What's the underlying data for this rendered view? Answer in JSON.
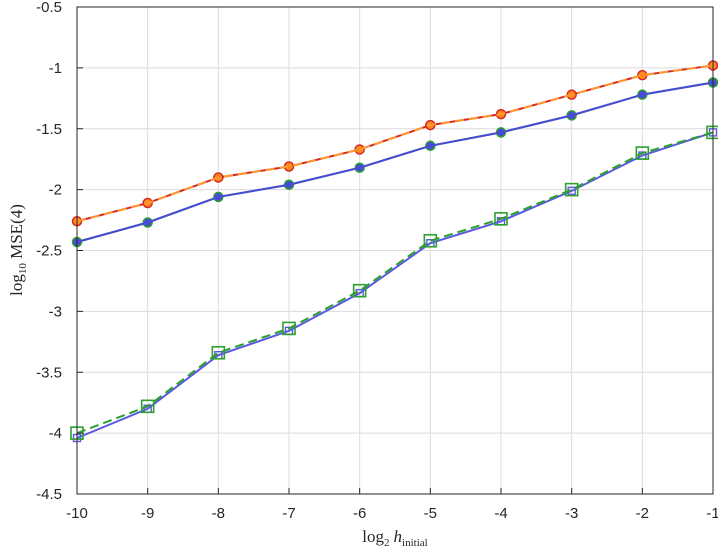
{
  "chart_data": {
    "type": "line",
    "title": "",
    "xlabel": {
      "main": "log",
      "sub": "2",
      "italic": "h",
      "italic_sub": "initial"
    },
    "ylabel": {
      "main": "log",
      "sub": "10",
      "rest": " MSE(4)"
    },
    "xlim": [
      -10,
      -1
    ],
    "ylim": [
      -4.5,
      -0.5
    ],
    "xticks": [
      "-10",
      "-9",
      "-8",
      "-7",
      "-6",
      "-5",
      "-4",
      "-3",
      "-2",
      "-1"
    ],
    "yticks": [
      "-0.5",
      "-1",
      "-1.5",
      "-2",
      "-2.5",
      "-3",
      "-3.5",
      "-4",
      "-4.5"
    ],
    "grid": true,
    "x": [
      -10,
      -9,
      -8,
      -7,
      -6,
      -5,
      -4,
      -3,
      -2,
      -1
    ],
    "series": [
      {
        "values": [
          -2.26,
          -2.11,
          -1.9,
          -1.81,
          -1.67,
          -1.47,
          -1.38,
          -1.22,
          -1.06,
          -0.98
        ],
        "color": "#d62728",
        "dash": "solid",
        "marker": "circle",
        "marker_fill": "#ff8c1a"
      },
      {
        "values": [
          -2.26,
          -2.11,
          -1.9,
          -1.81,
          -1.67,
          -1.47,
          -1.38,
          -1.22,
          -1.06,
          -0.98
        ],
        "color": "#ff9a2e",
        "dash": "dashed",
        "marker": "none"
      },
      {
        "values": [
          -2.43,
          -2.27,
          -2.06,
          -1.96,
          -1.82,
          -1.64,
          -1.53,
          -1.39,
          -1.22,
          -1.12
        ],
        "color": "#2ca02c",
        "dash": "solid",
        "marker": "circle",
        "marker_fill": "#4a4ad8"
      },
      {
        "values": [
          -2.43,
          -2.27,
          -2.06,
          -1.96,
          -1.82,
          -1.64,
          -1.53,
          -1.39,
          -1.22,
          -1.12
        ],
        "color": "#4a4ad8",
        "dash": "solid",
        "marker": "none"
      },
      {
        "values": [
          -4.04,
          -3.8,
          -3.36,
          -3.16,
          -2.85,
          -2.44,
          -2.26,
          -2.01,
          -1.72,
          -1.53
        ],
        "color": "#5a5ae0",
        "dash": "solid",
        "marker": "square-small"
      },
      {
        "values": [
          -4.0,
          -3.78,
          -3.34,
          -3.14,
          -2.83,
          -2.42,
          -2.24,
          -2.0,
          -1.7,
          -1.53
        ],
        "color": "#2ca02c",
        "dash": "dashed",
        "marker": "square"
      }
    ]
  }
}
